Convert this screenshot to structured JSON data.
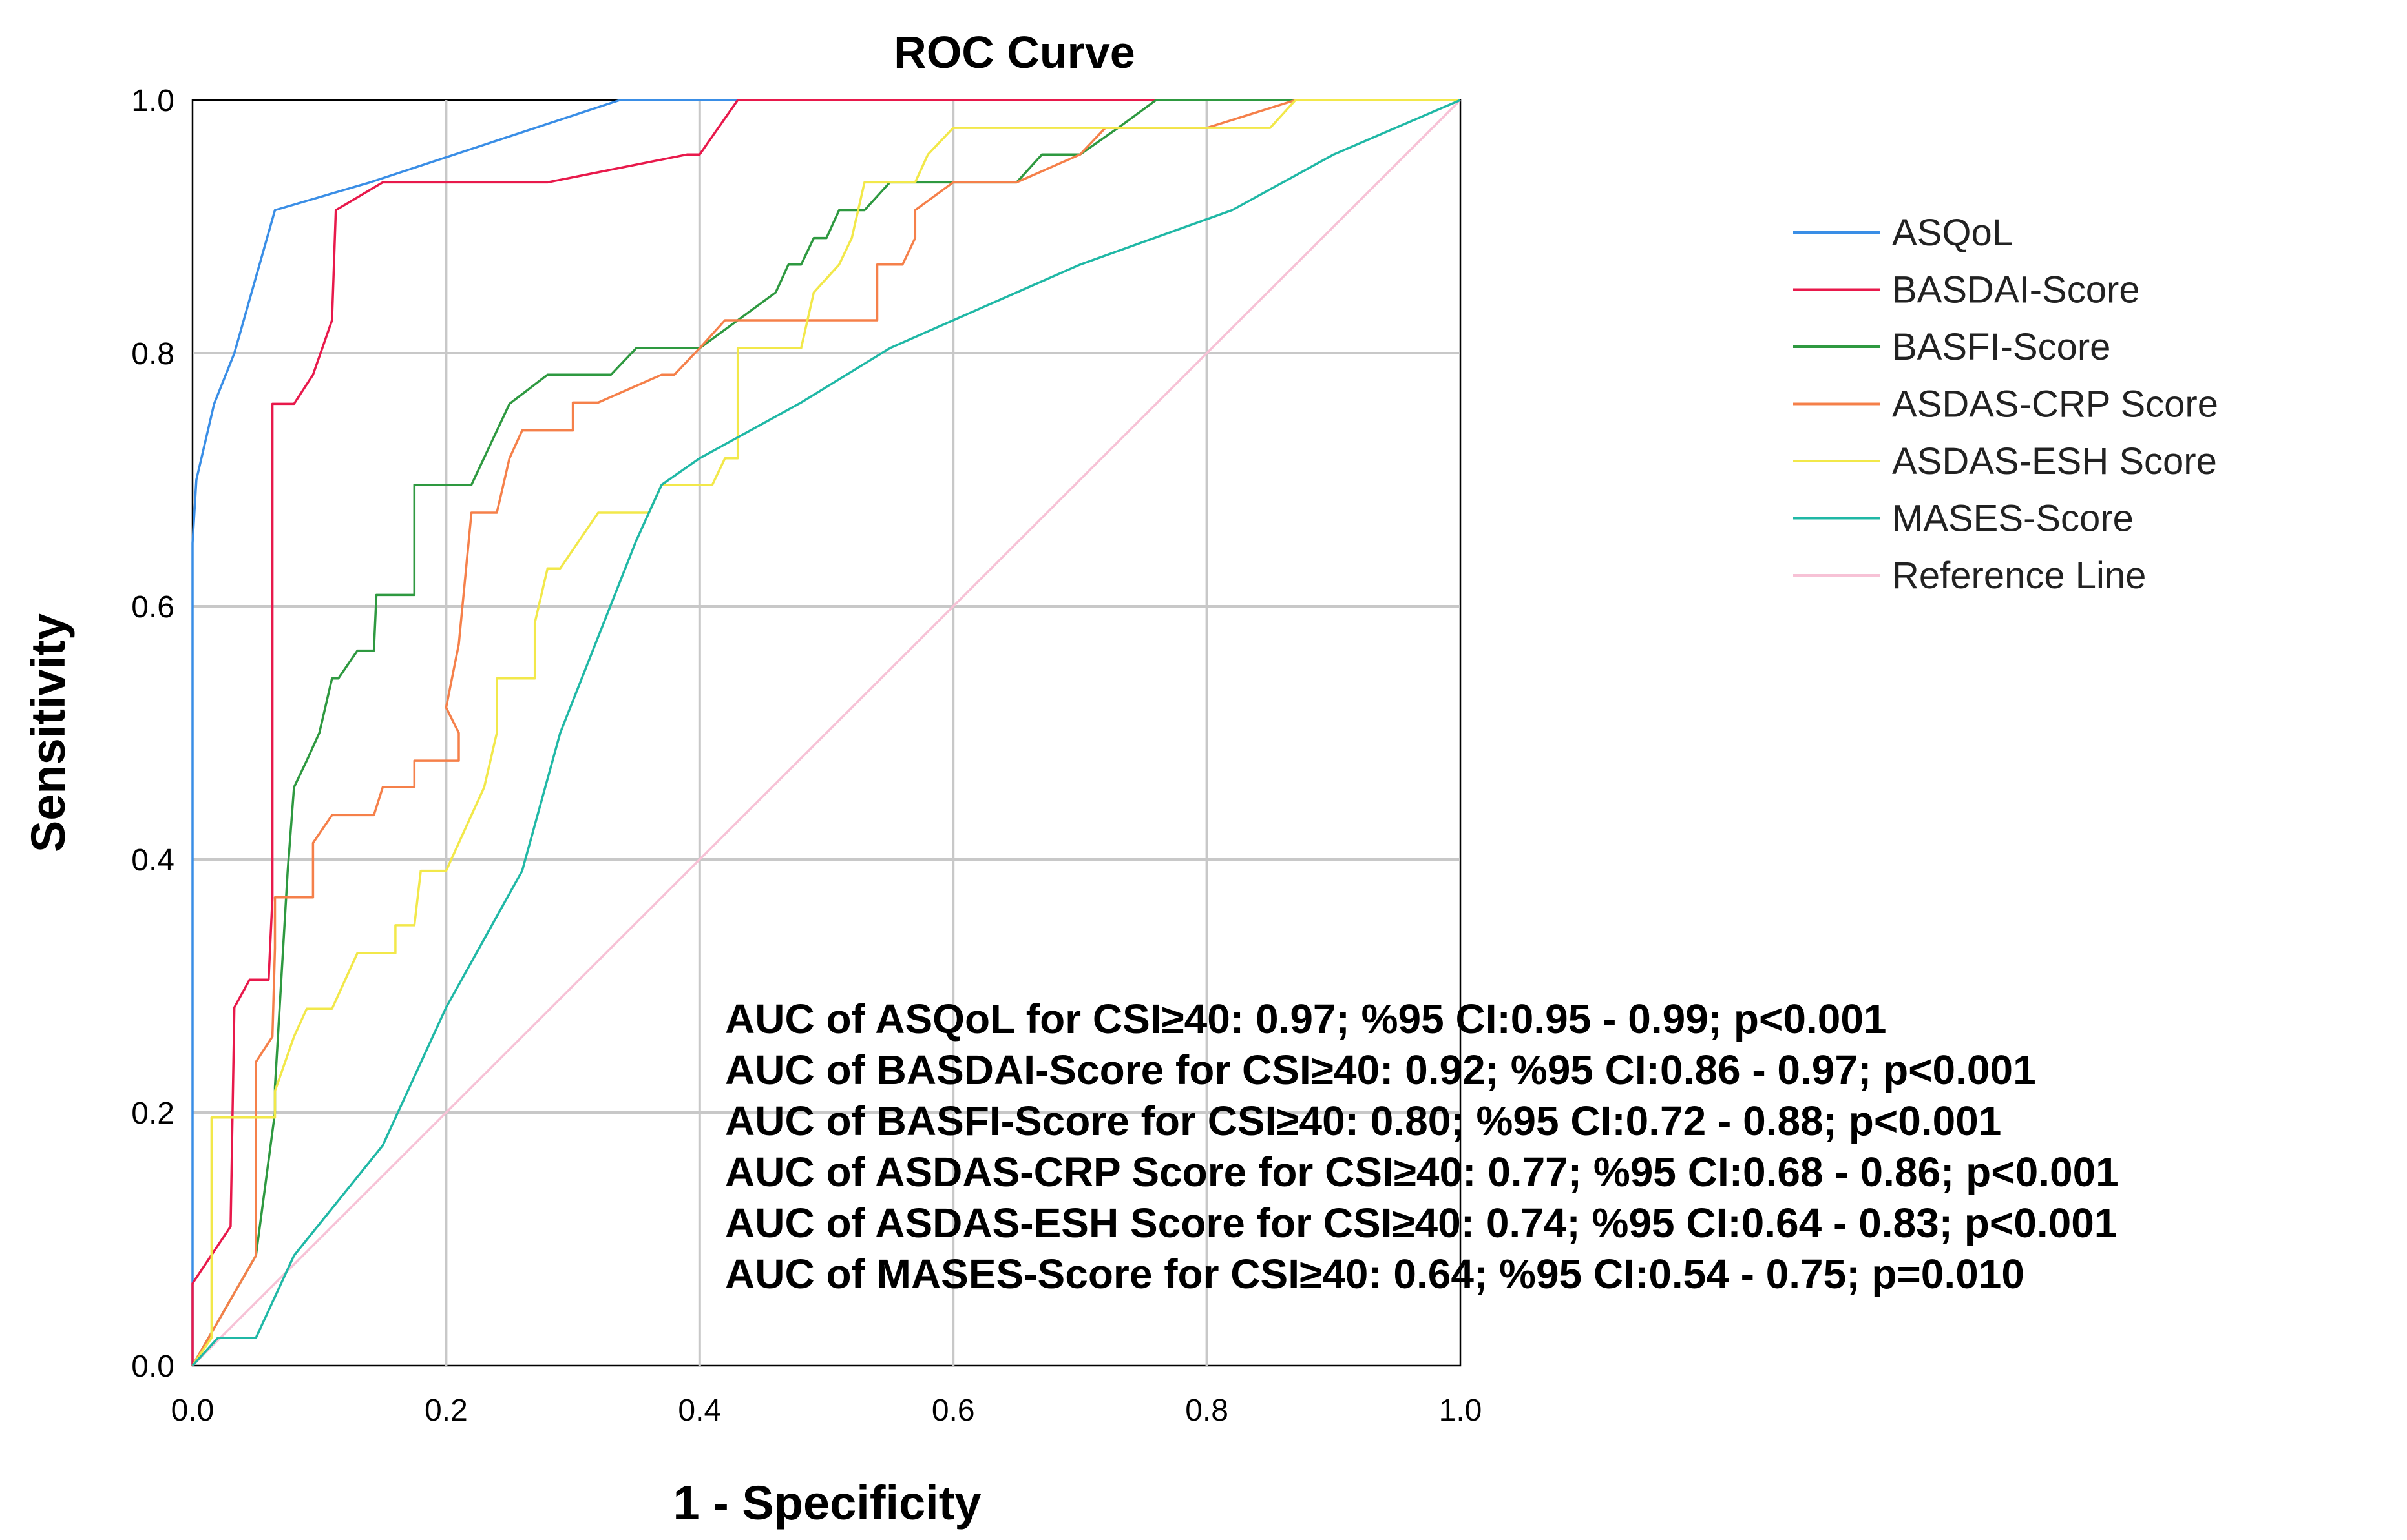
{
  "chart_data": {
    "type": "line",
    "title": "ROC Curve",
    "xlabel": "1 - Specificity",
    "ylabel": "Sensitivity",
    "xlim": [
      0,
      1
    ],
    "ylim": [
      0,
      1
    ],
    "xticks": [
      "0.0",
      "0.2",
      "0.4",
      "0.6",
      "0.8",
      "1.0"
    ],
    "yticks": [
      "0.0",
      "0.2",
      "0.4",
      "0.6",
      "0.8",
      "1.0"
    ],
    "grid": true,
    "legend_position": "right",
    "series": [
      {
        "name": "ASQoL",
        "color": "#3a8ee6",
        "x": [
          0,
          0,
          0.003,
          0.017,
          0.033,
          0.065,
          0.14,
          0.337,
          0.43,
          1
        ],
        "y": [
          0,
          0.65,
          0.7,
          0.76,
          0.8,
          0.913,
          0.935,
          1.0,
          1.0,
          1.0
        ]
      },
      {
        "name": "BASDAI-Score",
        "color": "#e8194b",
        "x": [
          0,
          0,
          0.03,
          0.033,
          0.045,
          0.06,
          0.063,
          0.063,
          0.065,
          0.065,
          0.08,
          0.095,
          0.11,
          0.113,
          0.15,
          0.28,
          0.39,
          0.4,
          0.43,
          1
        ],
        "y": [
          0,
          0.065,
          0.11,
          0.283,
          0.305,
          0.305,
          0.37,
          0.76,
          0.76,
          0.76,
          0.76,
          0.783,
          0.826,
          0.913,
          0.935,
          0.935,
          0.957,
          0.957,
          1.0,
          1.0
        ]
      },
      {
        "name": "BASFI-Score",
        "color": "#2e9940",
        "x": [
          0,
          0.05,
          0.065,
          0.065,
          0.075,
          0.08,
          0.09,
          0.1,
          0.11,
          0.115,
          0.13,
          0.143,
          0.145,
          0.175,
          0.175,
          0.22,
          0.25,
          0.28,
          0.31,
          0.33,
          0.35,
          0.4,
          0.43,
          0.46,
          0.47,
          0.48,
          0.49,
          0.5,
          0.51,
          0.52,
          0.53,
          0.55,
          0.56,
          0.57,
          0.6,
          0.65,
          0.67,
          0.7,
          0.73,
          0.76,
          0.8,
          0.87,
          1
        ],
        "y": [
          0,
          0.087,
          0.2,
          0.22,
          0.39,
          0.457,
          0.478,
          0.5,
          0.543,
          0.543,
          0.565,
          0.565,
          0.609,
          0.609,
          0.696,
          0.696,
          0.76,
          0.783,
          0.783,
          0.783,
          0.804,
          0.804,
          0.826,
          0.848,
          0.87,
          0.87,
          0.891,
          0.891,
          0.913,
          0.913,
          0.913,
          0.935,
          0.935,
          0.935,
          0.935,
          0.935,
          0.957,
          0.957,
          0.978,
          1.0,
          1.0,
          1.0,
          1.0
        ]
      },
      {
        "name": "ASDAS-CRP Score",
        "color": "#f5804a",
        "x": [
          0,
          0.05,
          0.05,
          0.063,
          0.063,
          0.065,
          0.065,
          0.095,
          0.095,
          0.11,
          0.113,
          0.143,
          0.15,
          0.175,
          0.175,
          0.21,
          0.21,
          0.2,
          0.21,
          0.22,
          0.24,
          0.25,
          0.26,
          0.3,
          0.3,
          0.32,
          0.37,
          0.38,
          0.4,
          0.42,
          0.45,
          0.5,
          0.54,
          0.54,
          0.56,
          0.57,
          0.57,
          0.6,
          0.63,
          0.65,
          0.7,
          0.72,
          0.8,
          0.87,
          1
        ],
        "y": [
          0,
          0.087,
          0.24,
          0.26,
          0.26,
          0.33,
          0.37,
          0.37,
          0.413,
          0.435,
          0.435,
          0.435,
          0.457,
          0.457,
          0.478,
          0.478,
          0.5,
          0.52,
          0.57,
          0.674,
          0.674,
          0.717,
          0.739,
          0.739,
          0.761,
          0.761,
          0.783,
          0.783,
          0.804,
          0.826,
          0.826,
          0.826,
          0.826,
          0.87,
          0.87,
          0.891,
          0.913,
          0.935,
          0.935,
          0.935,
          0.957,
          0.978,
          0.978,
          1.0,
          1.0
        ]
      },
      {
        "name": "ASDAS-ESH Score",
        "color": "#f2e84a",
        "x": [
          0,
          0.015,
          0.015,
          0.03,
          0.065,
          0.065,
          0.08,
          0.09,
          0.11,
          0.11,
          0.13,
          0.16,
          0.16,
          0.175,
          0.18,
          0.2,
          0.22,
          0.23,
          0.24,
          0.24,
          0.27,
          0.27,
          0.28,
          0.29,
          0.32,
          0.36,
          0.37,
          0.41,
          0.42,
          0.43,
          0.43,
          0.48,
          0.49,
          0.51,
          0.51,
          0.52,
          0.53,
          0.57,
          0.58,
          0.6,
          0.83,
          0.85,
          0.87,
          1
        ],
        "y": [
          0,
          0.022,
          0.196,
          0.196,
          0.196,
          0.217,
          0.26,
          0.282,
          0.282,
          0.282,
          0.326,
          0.326,
          0.348,
          0.348,
          0.391,
          0.391,
          0.435,
          0.457,
          0.5,
          0.543,
          0.543,
          0.587,
          0.63,
          0.63,
          0.674,
          0.674,
          0.696,
          0.696,
          0.717,
          0.717,
          0.804,
          0.804,
          0.848,
          0.87,
          0.87,
          0.891,
          0.935,
          0.935,
          0.957,
          0.978,
          0.978,
          0.978,
          1.0,
          1.0
        ]
      },
      {
        "name": "MASES-Score",
        "color": "#20b8a6",
        "x": [
          0,
          0.02,
          0.05,
          0.08,
          0.15,
          0.2,
          0.26,
          0.29,
          0.35,
          0.37,
          0.4,
          0.48,
          0.55,
          0.6,
          0.7,
          0.82,
          0.9,
          1
        ],
        "y": [
          0,
          0.022,
          0.022,
          0.087,
          0.174,
          0.283,
          0.391,
          0.5,
          0.652,
          0.696,
          0.717,
          0.761,
          0.804,
          0.826,
          0.87,
          0.913,
          0.957,
          1.0
        ]
      },
      {
        "name": "Reference Line",
        "color": "#f7c2d6",
        "x": [
          0,
          1
        ],
        "y": [
          0,
          1
        ]
      }
    ],
    "annotations": [
      "AUC of ASQoL for CSI≥40: 0.97; %95 CI:0.95 - 0.99; p<0.001",
      "AUC of BASDAI-Score for CSI≥40: 0.92; %95 CI:0.86 - 0.97; p<0.001",
      "AUC of BASFI-Score for CSI≥40: 0.80; %95 CI:0.72 - 0.88; p<0.001",
      "AUC of ASDAS-CRP Score for CSI≥40: 0.77; %95 CI:0.68 - 0.86; p<0.001",
      "AUC of ASDAS-ESH Score for CSI≥40: 0.74; %95 CI:0.64 - 0.83; p<0.001",
      "AUC of MASES-Score for CSI≥40: 0.64; %95 CI:0.54 - 0.75; p=0.010"
    ]
  }
}
